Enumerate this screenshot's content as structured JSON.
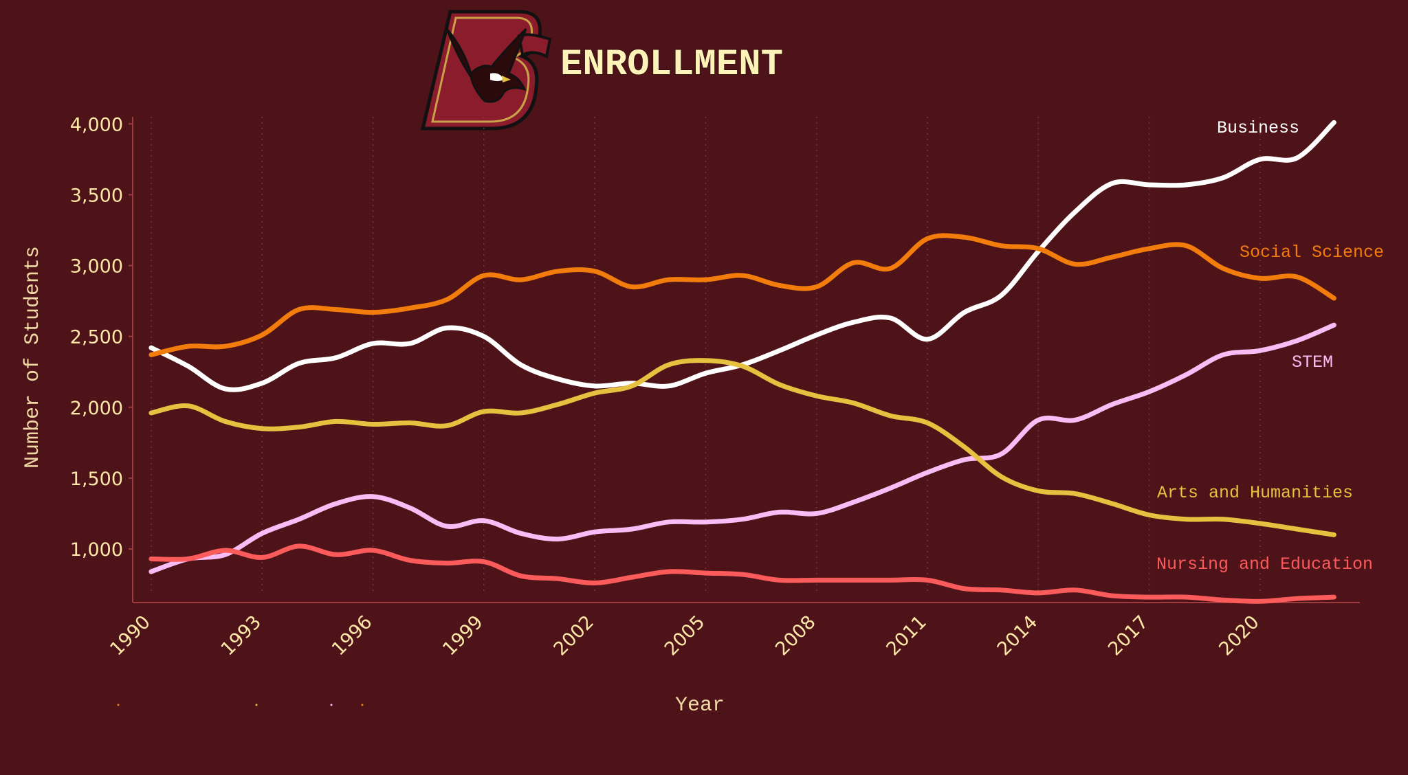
{
  "chart_data": {
    "type": "line",
    "title": "ENROLLMENT",
    "xlabel": "Year",
    "ylabel": "Number of Students",
    "xlim": [
      1989.5,
      2022.7
    ],
    "ylim": [
      680,
      4050
    ],
    "x_ticks": [
      1990,
      1993,
      1996,
      1999,
      2002,
      2005,
      2008,
      2011,
      2014,
      2017,
      2020
    ],
    "x_tick_labels": [
      "1990",
      "1993",
      "1996",
      "1999",
      "2002",
      "2005",
      "2008",
      "2011",
      "2014",
      "2017",
      "2020"
    ],
    "y_ticks": [
      1000,
      1500,
      2000,
      2500,
      3000,
      3500,
      4000
    ],
    "y_tick_labels": [
      "1,000",
      "1,500",
      "2,000",
      "2,500",
      "3,000",
      "3,500",
      "4,000"
    ],
    "grid": "vertical dotted",
    "legend": "direct labels at line ends",
    "x": [
      1990,
      1991,
      1992,
      1993,
      1994,
      1995,
      1996,
      1997,
      1998,
      1999,
      2000,
      2001,
      2002,
      2003,
      2004,
      2005,
      2006,
      2007,
      2008,
      2009,
      2010,
      2011,
      2012,
      2013,
      2014,
      2015,
      2016,
      2017,
      2018,
      2019,
      2020,
      2021,
      2022
    ],
    "series": [
      {
        "name": "Business",
        "color": "#ffffff",
        "values": [
          2420,
          2290,
          2130,
          2170,
          2310,
          2350,
          2450,
          2450,
          2560,
          2500,
          2300,
          2200,
          2150,
          2170,
          2150,
          2240,
          2300,
          2400,
          2510,
          2600,
          2630,
          2480,
          2670,
          2790,
          3100,
          3380,
          3580,
          3570,
          3570,
          3620,
          3750,
          3760,
          4010
        ]
      },
      {
        "name": "Social Science",
        "color": "#f27d0c",
        "values": [
          2370,
          2430,
          2430,
          2510,
          2690,
          2690,
          2670,
          2700,
          2760,
          2930,
          2900,
          2960,
          2960,
          2850,
          2900,
          2900,
          2930,
          2860,
          2850,
          3020,
          2980,
          3190,
          3200,
          3140,
          3120,
          3010,
          3060,
          3120,
          3140,
          2980,
          2910,
          2920,
          2770
        ]
      },
      {
        "name": "STEM",
        "color": "#f9bdf5",
        "values": [
          840,
          930,
          960,
          1110,
          1210,
          1320,
          1370,
          1290,
          1160,
          1200,
          1110,
          1070,
          1120,
          1140,
          1190,
          1190,
          1210,
          1260,
          1250,
          1330,
          1430,
          1540,
          1630,
          1670,
          1910,
          1910,
          2020,
          2110,
          2230,
          2370,
          2400,
          2470,
          2580
        ]
      },
      {
        "name": "Arts and Humanities",
        "color": "#e5c13f",
        "values": [
          1960,
          2010,
          1900,
          1850,
          1860,
          1900,
          1880,
          1890,
          1870,
          1970,
          1960,
          2020,
          2100,
          2150,
          2300,
          2330,
          2290,
          2160,
          2080,
          2030,
          1940,
          1890,
          1720,
          1510,
          1410,
          1390,
          1320,
          1240,
          1210,
          1210,
          1180,
          1140,
          1100
        ]
      },
      {
        "name": "Nursing and Education",
        "color": "#fb5b5b",
        "values": [
          930,
          930,
          990,
          940,
          1020,
          960,
          990,
          920,
          900,
          910,
          810,
          790,
          760,
          800,
          840,
          830,
          820,
          780,
          780,
          780,
          780,
          780,
          720,
          710,
          690,
          710,
          670,
          660,
          660,
          640,
          630,
          650,
          660
        ]
      }
    ],
    "series_labels": [
      {
        "name": "Business",
        "color": "#ffffff"
      },
      {
        "name": "Social Science",
        "color": "#f27d0c"
      },
      {
        "name": "STEM",
        "color": "#f9bdf5"
      },
      {
        "name": "Arts and Humanities",
        "color": "#e5c13f"
      },
      {
        "name": "Nursing and Education",
        "color": "#fb5b5b"
      }
    ]
  },
  "colors": {
    "background": "#4e1318",
    "title": "#fdf2b8",
    "logo_maroon": "#8b1c2b",
    "logo_gold": "#c9a24a"
  },
  "logo": {
    "text": "BC",
    "icon": "eagle-logo-icon"
  }
}
